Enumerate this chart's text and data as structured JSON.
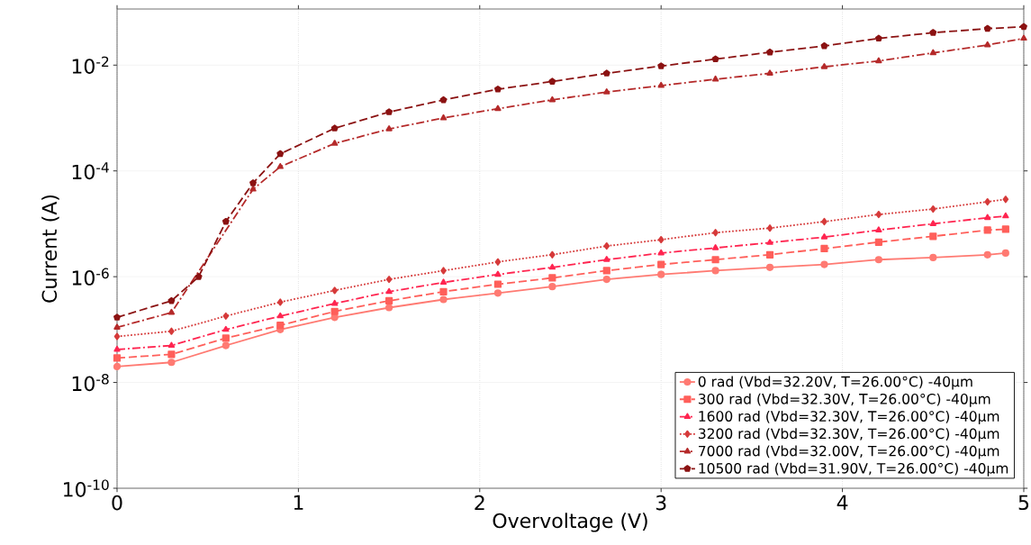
{
  "chart_data": {
    "type": "line",
    "xlabel": "Overvoltage (V)",
    "ylabel": "Current (A)",
    "log": "y",
    "grid": true,
    "legend": "bottom right",
    "xlim": [
      0,
      5
    ],
    "xticks": [
      0,
      1,
      2,
      3,
      4,
      5
    ],
    "ylim": [
      1e-10,
      0.115
    ],
    "yticks": [
      {
        "value": 1e-10,
        "label": "10$^{-10}$"
      },
      {
        "value": 1e-08,
        "label": "10$^{-8}$"
      },
      {
        "value": 1e-06,
        "label": "10$^{-6}$"
      },
      {
        "value": 0.0001,
        "label": "10$^{-4}$"
      },
      {
        "value": 0.01,
        "label": "10$^{-2}$"
      }
    ],
    "x": [
      0,
      0.3,
      0.6,
      0.9,
      1.2,
      1.5,
      1.8,
      2.1,
      2.4,
      2.7,
      3.0,
      3.3,
      3.6,
      3.9,
      4.2,
      4.5,
      4.8,
      4.9
    ],
    "series": [
      {
        "name": "0 rad (Vbd=32.20V, T=26.00°C) -40µm",
        "color": "#ff7a72",
        "marker": "circle",
        "line_style": "solid",
        "values": [
          2e-08,
          2.4e-08,
          5e-08,
          1e-07,
          1.7e-07,
          2.6e-07,
          3.7e-07,
          4.9e-07,
          6.5e-07,
          8.9e-07,
          1.1e-06,
          1.3e-06,
          1.5e-06,
          1.7e-06,
          2.1e-06,
          2.3e-06,
          2.6e-06,
          2.8e-06
        ]
      },
      {
        "name": "300 rad (Vbd=32.30V, T=26.00°C) -40µm",
        "color": "#ff5f5a",
        "marker": "square",
        "line_style": "dashed",
        "values": [
          2.9e-08,
          3.4e-08,
          6.9e-08,
          1.2e-07,
          2.2e-07,
          3.5e-07,
          5.2e-07,
          7.2e-07,
          9.5e-07,
          1.3e-06,
          1.7e-06,
          2.1e-06,
          2.6e-06,
          3.4e-06,
          4.5e-06,
          5.8e-06,
          7.6e-06,
          7.9e-06
        ]
      },
      {
        "name": "1600 rad (Vbd=32.30V, T=26.00°C) -40µm",
        "color": "#ff2550",
        "marker": "triangle",
        "line_style": "dashdot",
        "values": [
          4.2e-08,
          5e-08,
          1e-07,
          1.8e-07,
          3.1e-07,
          5.2e-07,
          7.8e-07,
          1.1e-06,
          1.5e-06,
          2.1e-06,
          2.8e-06,
          3.5e-06,
          4.4e-06,
          5.6e-06,
          7.6e-06,
          1e-05,
          1.3e-05,
          1.4e-05
        ]
      },
      {
        "name": "3200 rad (Vbd=32.30V, T=26.00°C) -40µm",
        "color": "#d63a3a",
        "marker": "diamond",
        "line_style": "dotted",
        "values": [
          7.4e-08,
          9.3e-08,
          1.8e-07,
          3.3e-07,
          5.5e-07,
          8.9e-07,
          1.3e-06,
          1.9e-06,
          2.6e-06,
          3.8e-06,
          5e-06,
          6.8e-06,
          8.3e-06,
          1.1e-05,
          1.5e-05,
          1.9e-05,
          2.6e-05,
          2.9e-05
        ]
      },
      {
        "name": "7000 rad (Vbd=32.00V, T=26.00°C) -40µm",
        "color": "#b52a2a",
        "marker": "triangle",
        "line_style": "dashdot",
        "x": [
          0,
          0.3,
          0.75,
          0.9,
          1.2,
          1.5,
          1.8,
          2.1,
          2.4,
          2.7,
          3.0,
          3.3,
          3.6,
          3.9,
          4.2,
          4.5,
          4.8,
          5.0
        ],
        "values": [
          1.1e-07,
          2.1e-07,
          4.5e-05,
          0.00012,
          0.00033,
          0.00062,
          0.001,
          0.0015,
          0.0022,
          0.0031,
          0.0041,
          0.0054,
          0.007,
          0.0093,
          0.012,
          0.017,
          0.024,
          0.032
        ]
      },
      {
        "name": "10500 rad (Vbd=31.90V, T=26.00°C) -40µm",
        "color": "#8b1212",
        "marker": "star",
        "line_style": "dashed",
        "x": [
          0,
          0.3,
          0.45,
          0.6,
          0.75,
          0.9,
          1.2,
          1.5,
          1.8,
          2.1,
          2.4,
          2.7,
          3.0,
          3.3,
          3.6,
          3.9,
          4.2,
          4.5,
          4.8,
          5.0
        ],
        "values": [
          1.7e-07,
          3.5e-07,
          1e-06,
          1.1e-05,
          5.9e-05,
          0.00021,
          0.00064,
          0.0013,
          0.0022,
          0.0035,
          0.0049,
          0.007,
          0.0096,
          0.013,
          0.0175,
          0.023,
          0.032,
          0.041,
          0.049,
          0.053
        ]
      }
    ]
  }
}
